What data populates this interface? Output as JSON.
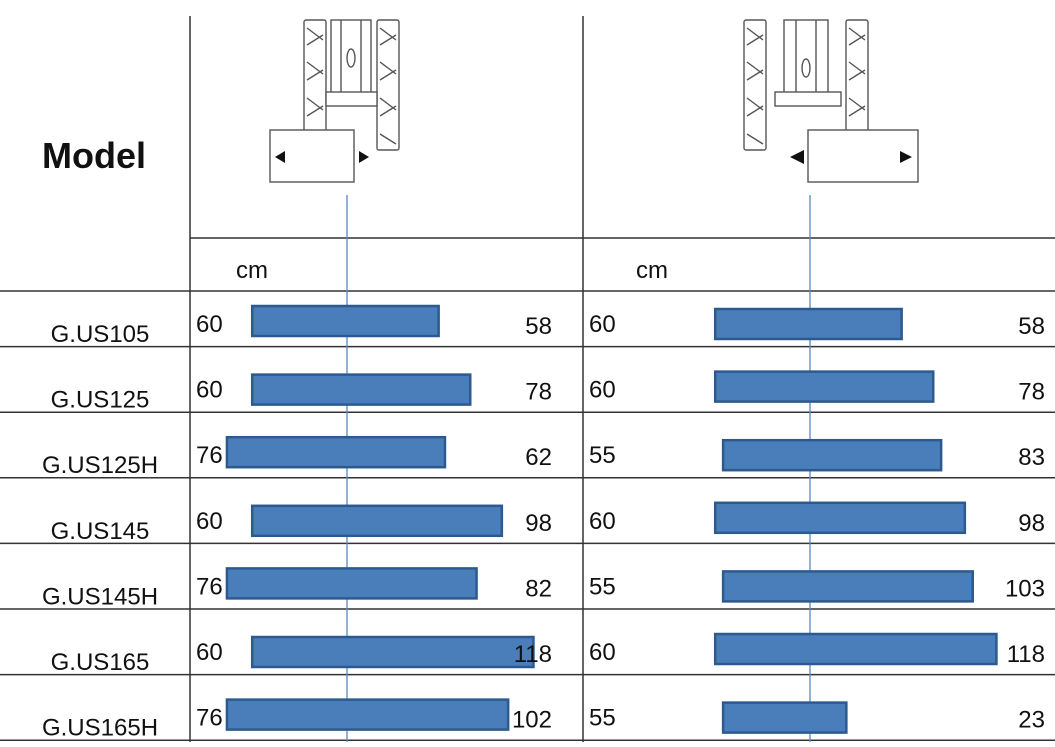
{
  "header": {
    "title": "Model",
    "unit_label": "cm"
  },
  "chart_data": [
    {
      "type": "bar",
      "subtype": "offset-range",
      "categories": [
        "G.US105",
        "G.US125",
        "G.US125H",
        "G.US145",
        "G.US145H",
        "G.US165",
        "G.US165H"
      ],
      "series": [
        {
          "values": [
            60,
            60,
            76,
            60,
            76,
            60,
            76
          ],
          "label_position": "left"
        },
        {
          "values": [
            58,
            78,
            62,
            98,
            82,
            118,
            102
          ],
          "label_position": "right"
        }
      ],
      "xlabel": "cm",
      "ylabel": "",
      "bar_color": "#4a7ebb"
    },
    {
      "type": "bar",
      "subtype": "offset-range",
      "categories": [
        "G.US105",
        "G.US125",
        "G.US125H",
        "G.US145",
        "G.US145H",
        "G.US165",
        "G.US165H"
      ],
      "series": [
        {
          "values": [
            60,
            60,
            55,
            60,
            55,
            60,
            55
          ],
          "label_position": "left"
        },
        {
          "values": [
            58,
            78,
            83,
            98,
            103,
            118,
            23
          ],
          "label_position": "right"
        }
      ],
      "xlabel": "cm",
      "ylabel": "",
      "bar_color": "#4a7ebb"
    }
  ]
}
